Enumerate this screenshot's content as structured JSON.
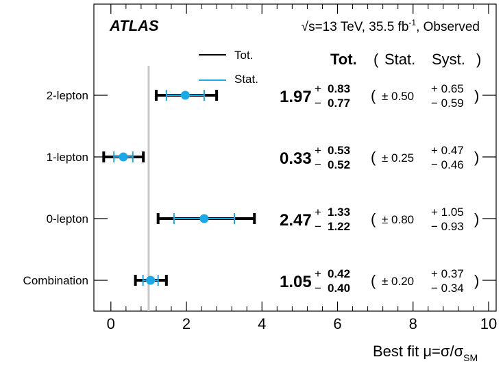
{
  "chart_data": {
    "type": "scatter",
    "experiment": "ATLAS",
    "energy_label": "√s=13 TeV, 35.5 fb",
    "lumi_sup": "-1",
    "status_label": ", Observed",
    "xlabel_text": "Best fit μ=σ/σ",
    "xlabel_sub": "SM",
    "xlim": [
      -0.45,
      10.2
    ],
    "xticks": [
      "0",
      "2",
      "4",
      "6",
      "8",
      "10"
    ],
    "xtick_values": [
      0,
      2,
      4,
      6,
      8,
      10
    ],
    "reference_line": 1,
    "legend": {
      "tot": "Tot.",
      "stat": "Stat."
    },
    "table_header": {
      "tot": "Tot.",
      "open": "(",
      "stat": "Stat.",
      "syst": "Syst.",
      "close": ")"
    },
    "colors": {
      "tot": "#000000",
      "stat": "#19a8e8",
      "reference": "#c8c8c8"
    },
    "categories": [
      "2-lepton",
      "1-lepton",
      "0-lepton",
      "Combination"
    ],
    "points": [
      {
        "label": "2-lepton",
        "mu": 1.97,
        "tot_up": 0.83,
        "tot_dn": 0.77,
        "stat": 0.5,
        "syst_up": 0.65,
        "syst_dn": 0.59,
        "mu_txt": "1.97",
        "tot_up_txt": "0.83",
        "tot_dn_txt": "0.77",
        "stat_txt": "± 0.50",
        "syst_up_txt": "+ 0.65",
        "syst_dn_txt": "− 0.59"
      },
      {
        "label": "1-lepton",
        "mu": 0.33,
        "tot_up": 0.53,
        "tot_dn": 0.52,
        "stat": 0.25,
        "syst_up": 0.47,
        "syst_dn": 0.46,
        "mu_txt": "0.33",
        "tot_up_txt": "0.53",
        "tot_dn_txt": "0.52",
        "stat_txt": "± 0.25",
        "syst_up_txt": "+ 0.47",
        "syst_dn_txt": "− 0.46"
      },
      {
        "label": "0-lepton",
        "mu": 2.47,
        "tot_up": 1.33,
        "tot_dn": 1.22,
        "stat": 0.8,
        "syst_up": 1.05,
        "syst_dn": 0.93,
        "mu_txt": "2.47",
        "tot_up_txt": "1.33",
        "tot_dn_txt": "1.22",
        "stat_txt": "± 0.80",
        "syst_up_txt": "+ 1.05",
        "syst_dn_txt": "− 0.93"
      },
      {
        "label": "Combination",
        "mu": 1.05,
        "tot_up": 0.42,
        "tot_dn": 0.4,
        "stat": 0.2,
        "syst_up": 0.37,
        "syst_dn": 0.34,
        "mu_txt": "1.05",
        "tot_up_txt": "0.42",
        "tot_dn_txt": "0.40",
        "stat_txt": "± 0.20",
        "syst_up_txt": "+ 0.37",
        "syst_dn_txt": "− 0.34"
      }
    ]
  }
}
